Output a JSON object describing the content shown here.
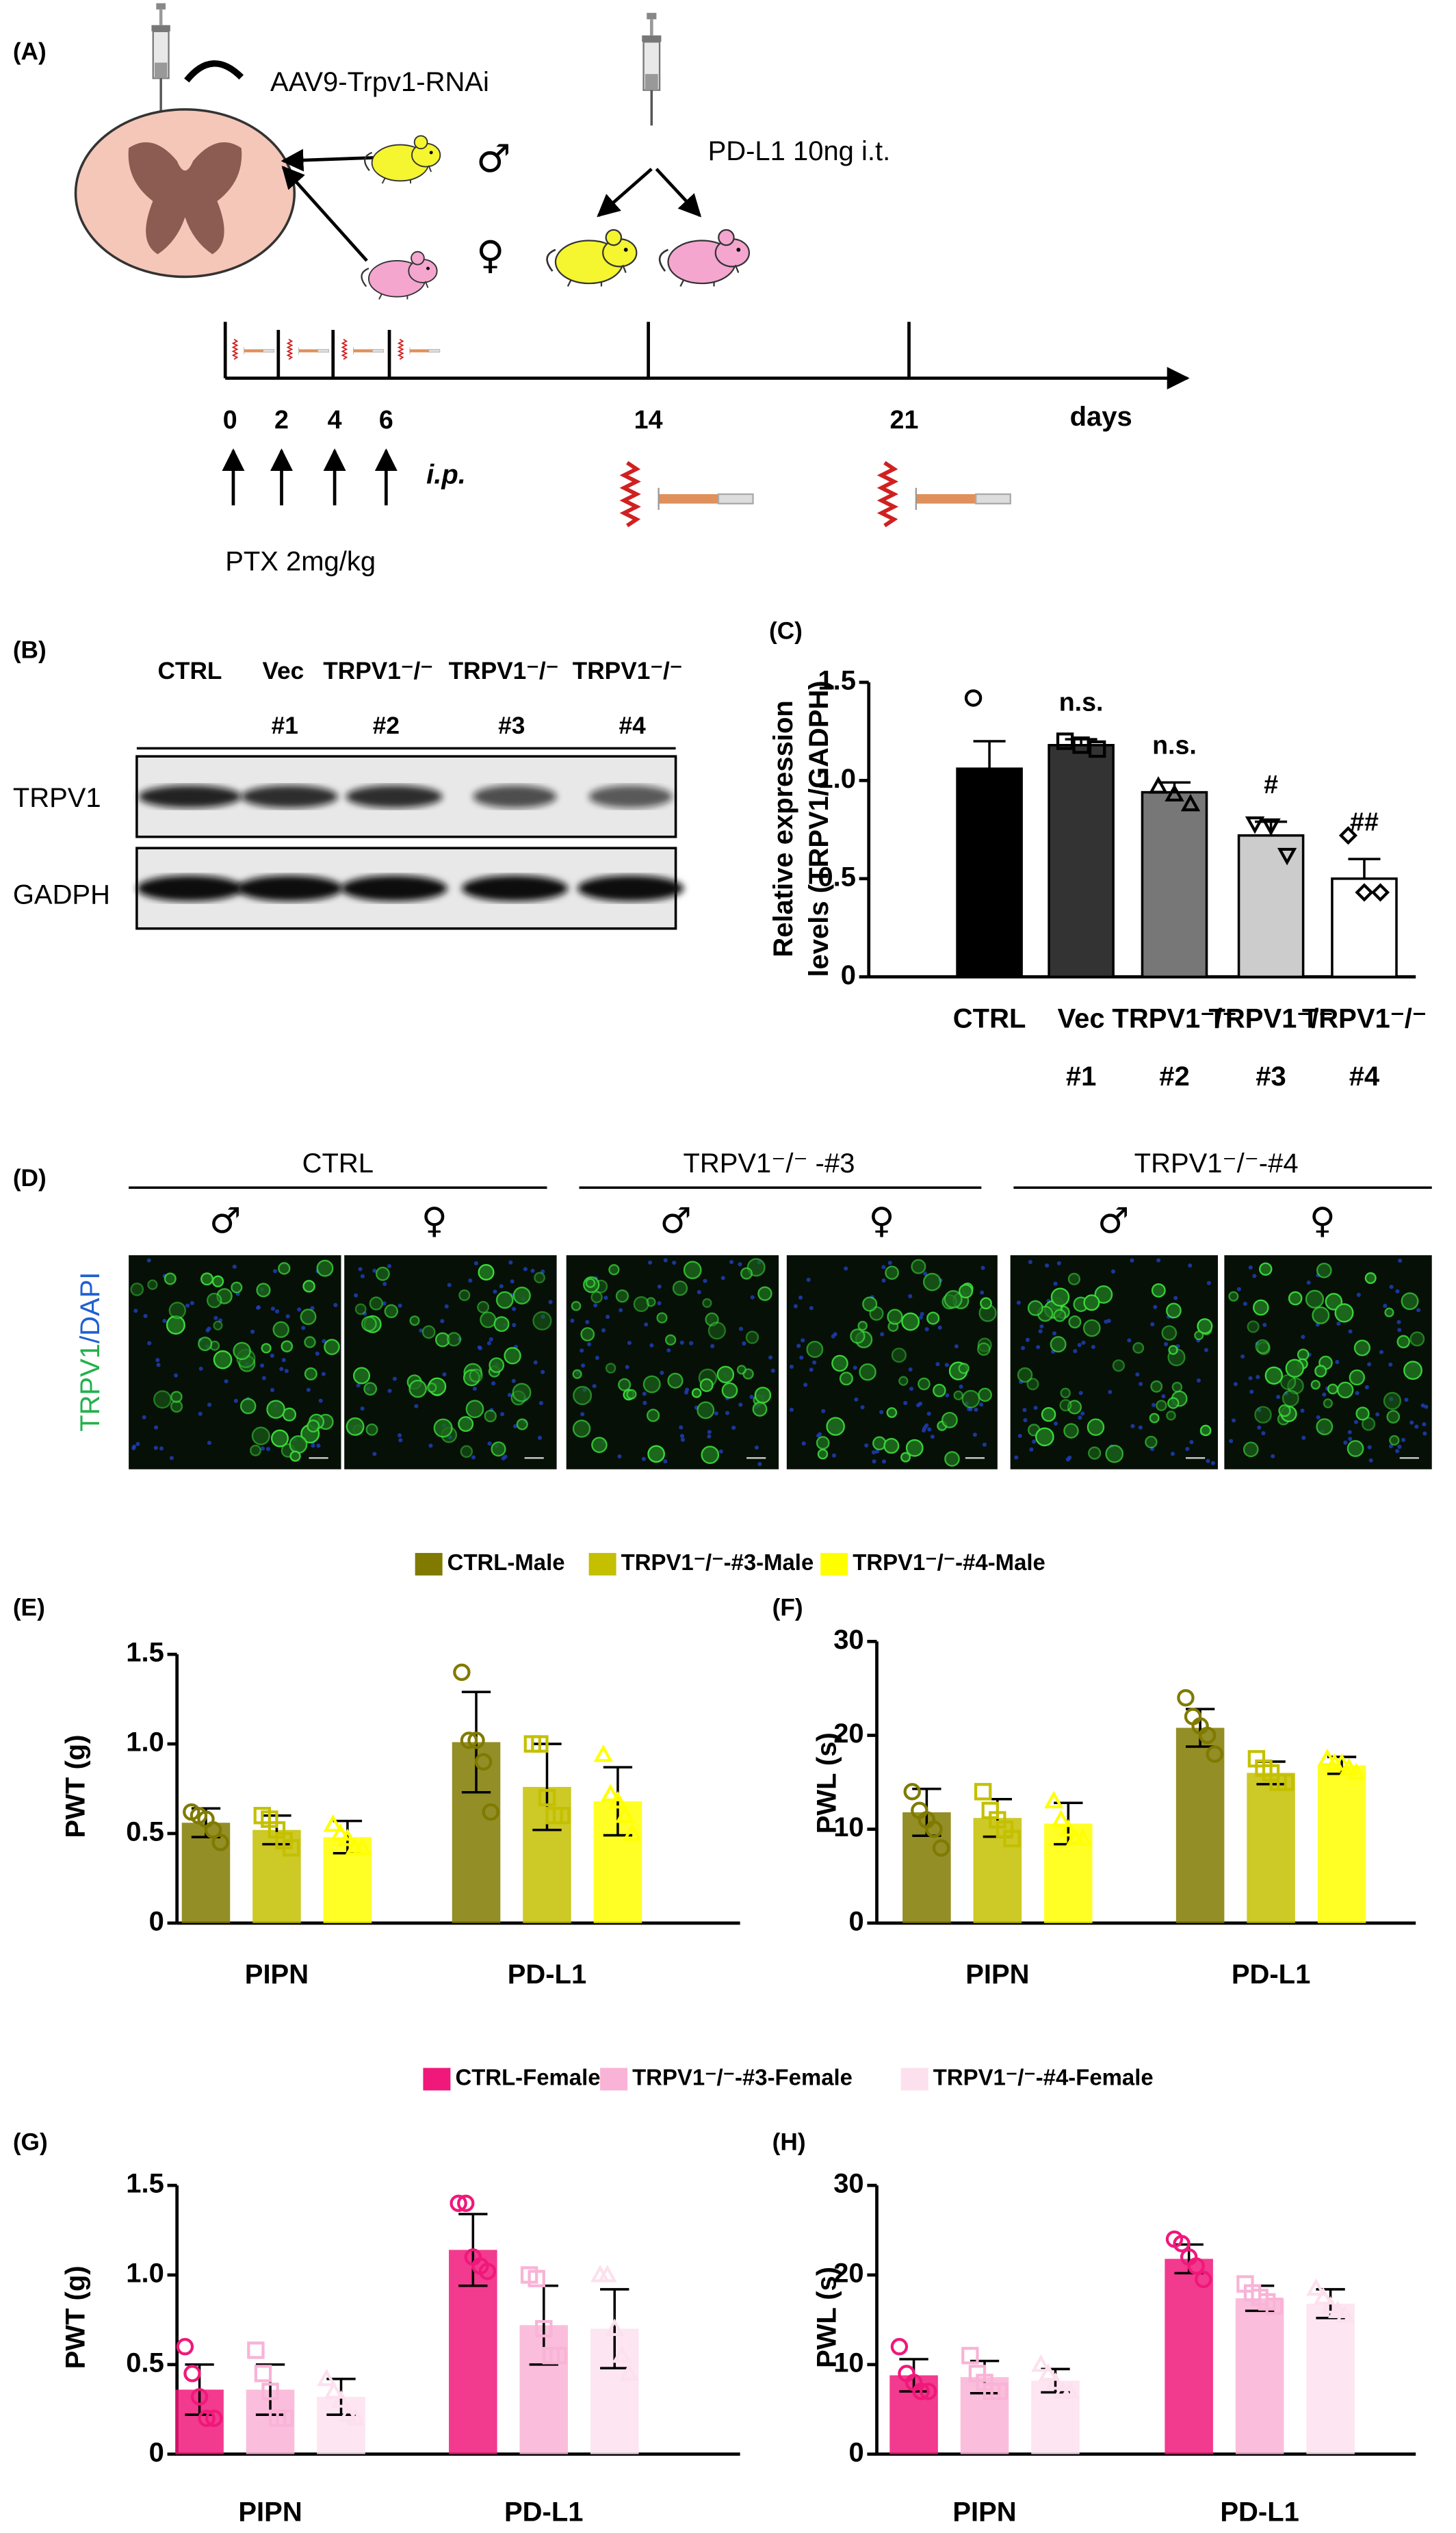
{
  "figure": {
    "panel_labels": [
      "(A)",
      "(B)",
      "(C)",
      "(D)",
      "(E)",
      "(F)",
      "(G)",
      "(H)"
    ],
    "a": {
      "injection": "AAV9-Trpv1-RNAi",
      "male": "♂",
      "female": "♀",
      "pdl1": "PD-L1 10ng i.t.",
      "timeline": [
        "0",
        "2",
        "4",
        "6",
        "14",
        "21"
      ],
      "unit": "days",
      "route": "i.p.",
      "ptx": "PTX 2mg/kg"
    },
    "b": {
      "lanes": [
        [
          "CTRL"
        ],
        [
          "Vec",
          "#1"
        ],
        [
          "TRPV1⁻/⁻",
          "#2"
        ],
        [
          "TRPV1⁻/⁻",
          "#3"
        ],
        [
          "TRPV1⁻/⁻",
          "#4"
        ]
      ],
      "rows": [
        "TRPV1",
        "GADPH"
      ]
    },
    "d": {
      "groups": [
        "CTRL",
        "TRPV1⁻/⁻ -#3",
        "TRPV1⁻/⁻-#4"
      ],
      "sexes": [
        "♂",
        "♀"
      ],
      "stain": [
        "TRPV1",
        "/DAPI"
      ]
    }
  },
  "chart_data": [
    {
      "type": "bar",
      "ylabel": [
        "Relative expression",
        "levels (TRPV1/GADPH)"
      ],
      "categories": [
        [
          "CTRL"
        ],
        [
          "Vec",
          "#1"
        ],
        [
          "TRPV1⁻/⁻",
          "#2"
        ],
        [
          "TRPV1⁻/⁻",
          "#3"
        ],
        [
          "TRPV1⁻/⁻",
          "#4"
        ]
      ],
      "values": [
        1.06,
        1.18,
        0.94,
        0.72,
        0.5
      ],
      "errors": [
        0.14,
        0.03,
        0.05,
        0.07,
        0.1
      ],
      "points": [
        [
          1.42,
          0.88,
          0.88
        ],
        [
          1.2,
          1.18,
          1.16
        ],
        [
          0.97,
          0.93,
          0.88
        ],
        [
          0.78,
          0.77,
          0.62
        ],
        [
          0.72,
          0.43,
          0.43
        ]
      ],
      "colors": [
        "#000000",
        "#333333",
        "#777777",
        "#cccccc",
        "#ffffff"
      ],
      "markers": [
        "circle",
        "square",
        "triangle",
        "invtriangle",
        "diamond"
      ],
      "annotations": [
        null,
        "n.s.",
        "n.s.",
        "#",
        "##"
      ],
      "ylim": [
        0,
        1.5
      ],
      "yticks": [
        0,
        0.5,
        {
          "value": 1,
          "label": "1.0"
        },
        1.5
      ]
    },
    {
      "type": "grouped_bar",
      "ylabel": "PWT (g)",
      "categories": [
        "PIPN",
        "PD-L1"
      ],
      "series": [
        {
          "name": "CTRL-Male",
          "color": "#807a00",
          "marker": "circle",
          "values": [
            0.56,
            1.01
          ],
          "errors": [
            0.08,
            0.28
          ],
          "points": [
            [
              0.62,
              0.6,
              0.58,
              0.52,
              0.45
            ],
            [
              1.4,
              1.02,
              1.02,
              0.9,
              0.62
            ]
          ]
        },
        {
          "name": "TRPV1⁻/⁻-#3-Male",
          "color": "#c4c000",
          "marker": "square",
          "values": [
            0.52,
            0.76
          ],
          "errors": [
            0.08,
            0.24
          ],
          "points": [
            [
              0.6,
              0.58,
              0.52,
              0.46,
              0.42
            ],
            [
              1.0,
              1.0,
              0.7,
              0.6,
              0.6
            ]
          ]
        },
        {
          "name": "TRPV1⁻/⁻-#4-Male",
          "color": "#ffff00",
          "marker": "triangle",
          "values": [
            0.48,
            0.68
          ],
          "errors": [
            0.09,
            0.19
          ],
          "points": [
            [
              0.55,
              0.5,
              0.47,
              0.42,
              0.42
            ],
            [
              0.94,
              0.72,
              0.68,
              0.6,
              0.5
            ]
          ]
        }
      ],
      "ylim": [
        0,
        1.5
      ],
      "yticks": [
        0,
        0.5,
        {
          "value": 1,
          "label": "1.0"
        },
        1.5
      ]
    },
    {
      "type": "grouped_bar",
      "ylabel": "PWL (s)",
      "categories": [
        "PIPN",
        "PD-L1"
      ],
      "series": [
        {
          "color": "#807a00",
          "marker": "circle",
          "values": [
            11.8,
            20.8
          ],
          "errors": [
            2.5,
            2.0
          ],
          "points": [
            [
              14,
              12,
              11,
              10,
              8
            ],
            [
              24,
              22,
              21,
              20,
              18
            ]
          ]
        },
        {
          "color": "#c4c000",
          "marker": "square",
          "values": [
            11.2,
            16.0
          ],
          "errors": [
            2.0,
            1.2
          ],
          "points": [
            [
              14,
              12,
              11,
              10,
              9
            ],
            [
              17.5,
              16.5,
              16,
              15,
              15
            ]
          ]
        },
        {
          "color": "#ffff00",
          "marker": "triangle",
          "values": [
            10.6,
            16.8
          ],
          "errors": [
            2.2,
            0.9
          ],
          "points": [
            [
              13,
              11,
              10,
              9,
              9
            ],
            [
              17.5,
              17,
              17,
              16.5,
              16
            ]
          ]
        }
      ],
      "ylim": [
        0,
        30
      ],
      "yticks": [
        0,
        10,
        20,
        30
      ]
    },
    {
      "type": "grouped_bar",
      "ylabel": "PWT (g)",
      "categories": [
        "PIPN",
        "PD-L1"
      ],
      "series": [
        {
          "name": "CTRL-Female",
          "color": "#f0187a",
          "marker": "circle",
          "values": [
            0.36,
            1.14
          ],
          "errors": [
            0.14,
            0.2
          ],
          "points": [
            [
              0.6,
              0.45,
              0.32,
              0.2,
              0.2
            ],
            [
              1.4,
              1.4,
              1.1,
              1.05,
              1.02
            ]
          ]
        },
        {
          "name": "TRPV1⁻/⁻-#3-Female",
          "color": "#f9b3d6",
          "marker": "square",
          "values": [
            0.36,
            0.72
          ],
          "errors": [
            0.14,
            0.22
          ],
          "points": [
            [
              0.58,
              0.45,
              0.35,
              0.2,
              0.2
            ],
            [
              1.0,
              0.98,
              0.7,
              0.55,
              0.55
            ]
          ]
        },
        {
          "name": "TRPV1⁻/⁻-#4-Female",
          "color": "#fde0ee",
          "marker": "triangle",
          "values": [
            0.32,
            0.7
          ],
          "errors": [
            0.1,
            0.22
          ],
          "points": [
            [
              0.42,
              0.35,
              0.3,
              0.22,
              0.2
            ],
            [
              1.0,
              1.0,
              0.7,
              0.55,
              0.45
            ]
          ]
        }
      ],
      "ylim": [
        0,
        1.5
      ],
      "yticks": [
        0,
        0.5,
        {
          "value": 1,
          "label": "1.0"
        },
        1.5
      ]
    },
    {
      "type": "grouped_bar",
      "ylabel": "PWL (s)",
      "categories": [
        "PIPN",
        "PD-L1"
      ],
      "series": [
        {
          "color": "#f0187a",
          "marker": "circle",
          "values": [
            8.8,
            21.8
          ],
          "errors": [
            1.8,
            1.6
          ],
          "points": [
            [
              12,
              9,
              8,
              7,
              7
            ],
            [
              24,
              23.5,
              22,
              21,
              19.5
            ]
          ]
        },
        {
          "color": "#f9b3d6",
          "marker": "square",
          "values": [
            8.6,
            17.4
          ],
          "errors": [
            1.8,
            1.4
          ],
          "points": [
            [
              11,
              9,
              8,
              7,
              7
            ],
            [
              19,
              18,
              17.5,
              17,
              16.5
            ]
          ]
        },
        {
          "color": "#fde0ee",
          "marker": "triangle",
          "values": [
            8.2,
            16.8
          ],
          "errors": [
            1.3,
            1.6
          ],
          "points": [
            [
              10,
              9,
              8,
              7,
              7
            ],
            [
              18.5,
              17.5,
              16.5,
              16,
              15.5
            ]
          ]
        }
      ],
      "ylim": [
        0,
        30
      ],
      "yticks": [
        0,
        10,
        20,
        30
      ]
    }
  ]
}
